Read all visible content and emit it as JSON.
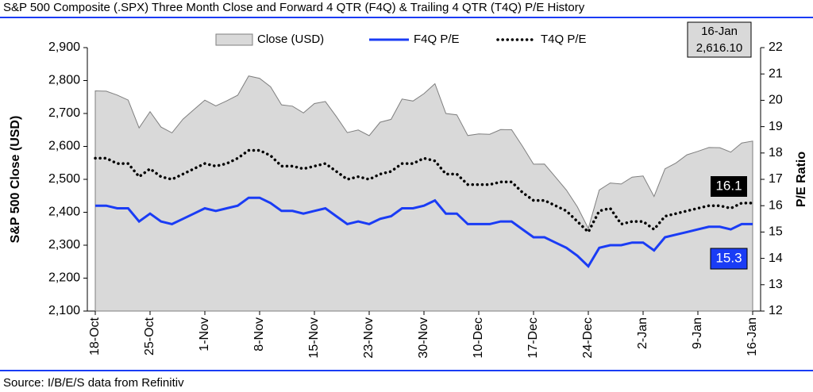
{
  "chart_data": {
    "type": "area_line",
    "title": "S&P 500 Composite (.SPX) Three Month Close and Forward 4 QTR (F4Q) & Trailing 4 QTR (T4Q) P/E History",
    "source": "Source: I/B/E/S data from Refinitiv",
    "ylabel": "S&P 500 Close (USD)",
    "y2label": "P/E Ratio",
    "latest_date": "16-Jan",
    "latest_close": "2,616.10",
    "categories": [
      "18-Oct",
      null,
      null,
      null,
      null,
      "25-Oct",
      null,
      null,
      null,
      null,
      "1-Nov",
      null,
      null,
      null,
      null,
      "8-Nov",
      null,
      null,
      null,
      null,
      "15-Nov",
      null,
      null,
      null,
      null,
      "23-Nov",
      null,
      null,
      null,
      null,
      "30-Nov",
      null,
      null,
      null,
      null,
      "10-Dec",
      null,
      null,
      null,
      null,
      "17-Dec",
      null,
      null,
      null,
      null,
      "24-Dec",
      null,
      null,
      null,
      null,
      "2-Jan",
      null,
      null,
      null,
      null,
      "9-Jan",
      null,
      null,
      null,
      null,
      "16-Jan"
    ],
    "series": [
      {
        "name": "Close (USD)",
        "color": "#d9d9d9",
        "axis": "y",
        "values": [
          2768.78,
          2767.78,
          2755.88,
          2740.69,
          2656.1,
          2705.57,
          2658.69,
          2641.25,
          2682.63,
          2711.74,
          2740.37,
          2723.06,
          2738.31,
          2755.45,
          2813.89,
          2806.83,
          2781.01,
          2726.22,
          2722.18,
          2701.58,
          2730.2,
          2736.27,
          2690.73,
          2641.89,
          2649.93,
          2632.56,
          2673.45,
          2682.17,
          2743.79,
          2737.8,
          2760.17,
          2790.37,
          2700.06,
          2695.95,
          2633.08,
          2637.72,
          2636.78,
          2651.07,
          2650.54,
          2599.95,
          2545.94,
          2546.16,
          2506.96,
          2467.42,
          2416.62,
          2351.1,
          2467.7,
          2488.83,
          2485.74,
          2506.85,
          2510.03,
          2447.89,
          2531.94,
          2549.69,
          2574.41,
          2584.96,
          2596.64,
          2596.26,
          2582.61,
          2610.3,
          2616.1
        ]
      },
      {
        "name": "F4Q P/E",
        "color": "#1a3cf5",
        "axis": "y2",
        "last_label": "15.3",
        "values": [
          16.0,
          16.0,
          15.9,
          15.9,
          15.4,
          15.7,
          15.4,
          15.3,
          15.5,
          15.7,
          15.9,
          15.8,
          15.9,
          16.0,
          16.3,
          16.3,
          16.1,
          15.8,
          15.8,
          15.7,
          15.8,
          15.9,
          15.6,
          15.3,
          15.4,
          15.3,
          15.5,
          15.6,
          15.9,
          15.9,
          16.0,
          16.2,
          15.7,
          15.7,
          15.3,
          15.3,
          15.3,
          15.4,
          15.4,
          15.1,
          14.8,
          14.8,
          14.6,
          14.4,
          14.1,
          13.7,
          14.4,
          14.5,
          14.5,
          14.6,
          14.6,
          14.3,
          14.8,
          14.9,
          15.0,
          15.1,
          15.2,
          15.2,
          15.1,
          15.3,
          15.3
        ]
      },
      {
        "name": "T4Q P/E",
        "color": "#000000",
        "axis": "y2",
        "last_label": "16.1",
        "values": [
          17.8,
          17.8,
          17.6,
          17.6,
          17.1,
          17.4,
          17.1,
          17.0,
          17.2,
          17.4,
          17.6,
          17.5,
          17.6,
          17.8,
          18.1,
          18.1,
          17.9,
          17.5,
          17.5,
          17.4,
          17.5,
          17.6,
          17.3,
          17.0,
          17.1,
          17.0,
          17.2,
          17.3,
          17.6,
          17.6,
          17.8,
          17.7,
          17.2,
          17.2,
          16.8,
          16.8,
          16.8,
          16.9,
          16.9,
          16.5,
          16.2,
          16.2,
          16.0,
          15.8,
          15.4,
          15.0,
          15.8,
          15.9,
          15.3,
          15.4,
          15.4,
          15.1,
          15.6,
          15.7,
          15.8,
          15.9,
          16.0,
          16.0,
          15.9,
          16.1,
          16.1
        ]
      }
    ],
    "ylim": [
      2100,
      2900
    ],
    "yticks": [
      {
        "value": 2100,
        "label": "2,100"
      },
      {
        "value": 2200,
        "label": "2,200"
      },
      {
        "value": 2300,
        "label": "2,300"
      },
      {
        "value": 2400,
        "label": "2,400"
      },
      {
        "value": 2500,
        "label": "2,500"
      },
      {
        "value": 2600,
        "label": "2,600"
      },
      {
        "value": 2700,
        "label": "2,700"
      },
      {
        "value": 2800,
        "label": "2,800"
      },
      {
        "value": 2900,
        "label": "2,900"
      }
    ],
    "y2lim": [
      12,
      22
    ],
    "y2ticks": [
      12,
      13,
      14,
      15,
      16,
      17,
      18,
      19,
      20,
      21,
      22
    ],
    "legend": "top"
  }
}
